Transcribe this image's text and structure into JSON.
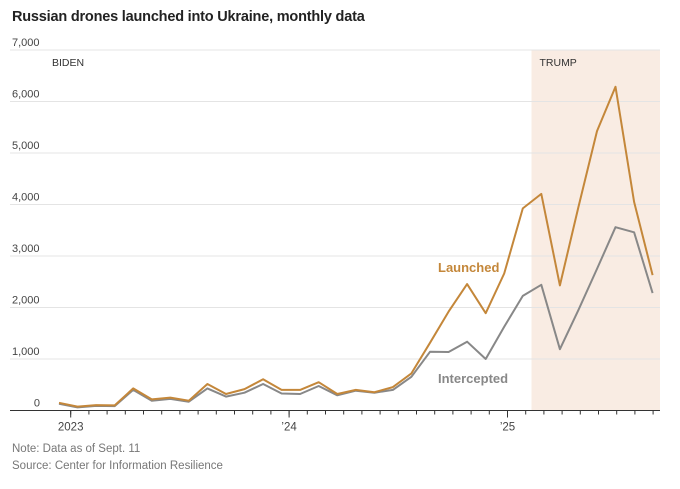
{
  "chart_data": {
    "type": "line",
    "title": "Russian drones launched into Ukraine, monthly data",
    "xlabel": "",
    "ylabel": "",
    "ylim": [
      0,
      7000
    ],
    "yticks": [
      0,
      1000,
      2000,
      3000,
      4000,
      5000,
      6000,
      7000
    ],
    "ytick_labels": [
      "0",
      "1,000",
      "2,000",
      "3,000",
      "4,000",
      "5,000",
      "6,000",
      "7,000"
    ],
    "grid": true,
    "x": [
      "2022-12",
      "2023-01",
      "2023-02",
      "2023-03",
      "2023-04",
      "2023-05",
      "2023-06",
      "2023-07",
      "2023-08",
      "2023-09",
      "2023-10",
      "2023-11",
      "2023-12",
      "2024-01",
      "2024-02",
      "2024-03",
      "2024-04",
      "2024-05",
      "2024-06",
      "2024-07",
      "2024-08",
      "2024-09",
      "2024-10",
      "2024-11",
      "2024-12",
      "2025-01",
      "2025-02",
      "2025-03",
      "2025-04",
      "2025-05",
      "2025-06",
      "2025-07",
      "2025-08"
    ],
    "xticks": [
      {
        "month": "2023-01",
        "label": "2023"
      },
      {
        "month": "2024-01",
        "label": "’24"
      },
      {
        "month": "2025-01",
        "label": "’25"
      }
    ],
    "series": [
      {
        "name": "Launched",
        "color": "#c4873a",
        "values": [
          150,
          75,
          105,
          100,
          430,
          215,
          250,
          190,
          515,
          320,
          415,
          605,
          400,
          400,
          550,
          320,
          400,
          355,
          455,
          720,
          1315,
          1920,
          2455,
          1890,
          2660,
          3925,
          4205,
          2430,
          3950,
          5425,
          6285,
          4050,
          2630
        ]
      },
      {
        "name": "Intercepted",
        "color": "#888888",
        "values": [
          130,
          60,
          90,
          85,
          400,
          190,
          225,
          170,
          430,
          270,
          345,
          515,
          330,
          320,
          475,
          295,
          385,
          345,
          400,
          655,
          1140,
          1135,
          1335,
          1000,
          1625,
          2225,
          2440,
          1190,
          1950,
          2750,
          3560,
          3460,
          2280
        ]
      }
    ],
    "shaded_regions": [
      {
        "label": "BIDEN",
        "start": "2022-12",
        "shaded": false
      },
      {
        "label": "TRUMP",
        "start": "2025-01-20",
        "end": "2025-08",
        "shaded": true,
        "color": "#f9ece3"
      }
    ],
    "annotations": [
      {
        "text": "Launched",
        "series": "Launched"
      },
      {
        "text": "Intercepted",
        "series": "Intercepted"
      }
    ],
    "legend": "inline-labels"
  },
  "notes": {
    "note": "Note: Data as of Sept. 11",
    "source": "Source: Center for Information Resilience"
  }
}
